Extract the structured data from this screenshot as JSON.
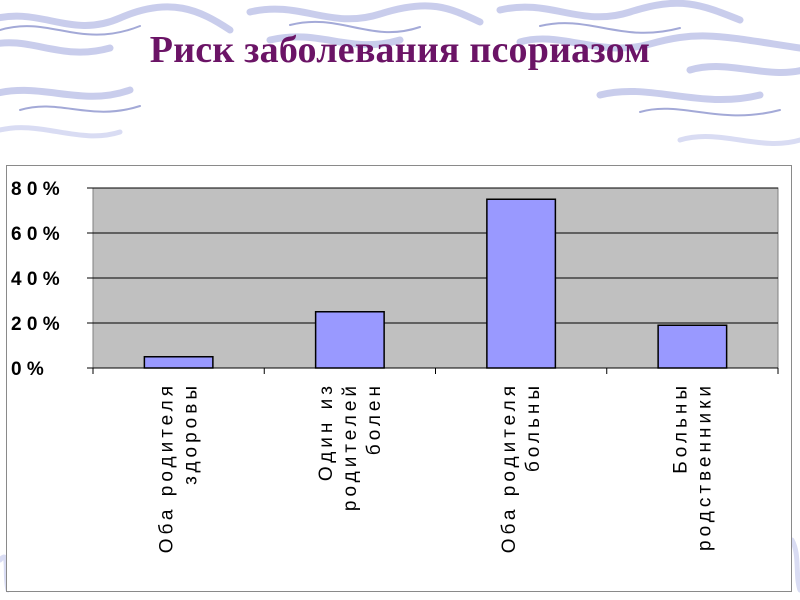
{
  "title": "Риск заболевания псориазом",
  "colors": {
    "title": "#6b1466",
    "plot_area": "#c0c0c0",
    "bar_fill": "#9999ff",
    "bar_stroke": "#000000",
    "gridline": "#000000",
    "background_accent": "#b8bde6"
  },
  "chart_data": {
    "type": "bar",
    "title": "",
    "xlabel": "",
    "ylabel": "",
    "categories": [
      [
        "Оба родителя",
        "здоровы"
      ],
      [
        "Один из",
        "родителей",
        "болен"
      ],
      [
        "Оба родителя",
        "больны"
      ],
      [
        "Больны",
        "родственники"
      ]
    ],
    "values": [
      5,
      25,
      75,
      19
    ],
    "ylim": [
      0,
      80
    ],
    "yticks": [
      0,
      20,
      40,
      60,
      80
    ],
    "ytick_labels": [
      "0 %",
      "2 0 %",
      "4 0 %",
      "6 0 %",
      "8 0 %"
    ],
    "grid": true,
    "legend": "none"
  }
}
